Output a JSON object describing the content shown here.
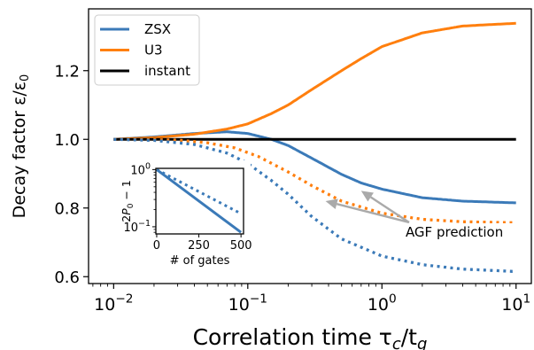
{
  "chart_data": [
    {
      "type": "line",
      "xlabel": "Correlation time τc/tg",
      "ylabel": "Decay factor ε/ε0",
      "x_scale": "log",
      "xlim": [
        0.0065,
        13
      ],
      "ylim": [
        0.58,
        1.38
      ],
      "x_ticks": [
        {
          "value": 0.01,
          "base": "10",
          "exp": "−2"
        },
        {
          "value": 0.1,
          "base": "10",
          "exp": "−1"
        },
        {
          "value": 1,
          "base": "10",
          "exp": "0"
        },
        {
          "value": 10,
          "base": "10",
          "exp": "1"
        }
      ],
      "y_ticks": [
        {
          "value": 0.6,
          "label": "0.6"
        },
        {
          "value": 0.8,
          "label": "0.8"
        },
        {
          "value": 1.0,
          "label": "1.0"
        },
        {
          "value": 1.2,
          "label": "1.2"
        }
      ],
      "legend_position": "upper-left",
      "series": [
        {
          "name": "ZSX",
          "color": "#3b7ab8",
          "style": "solid",
          "x": [
            0.01,
            0.02,
            0.04,
            0.07,
            0.1,
            0.15,
            0.2,
            0.3,
            0.5,
            0.7,
            1,
            2,
            4,
            10
          ],
          "y": [
            1.0,
            1.007,
            1.017,
            1.022,
            1.017,
            1.0,
            0.982,
            0.945,
            0.898,
            0.873,
            0.855,
            0.83,
            0.82,
            0.815
          ]
        },
        {
          "name": "U3",
          "color": "#ff7f0e",
          "style": "solid",
          "x": [
            0.01,
            0.02,
            0.04,
            0.07,
            0.1,
            0.15,
            0.2,
            0.3,
            0.5,
            0.7,
            1,
            2,
            4,
            10
          ],
          "y": [
            1.0,
            1.005,
            1.015,
            1.03,
            1.045,
            1.075,
            1.1,
            1.145,
            1.2,
            1.235,
            1.27,
            1.31,
            1.33,
            1.338
          ]
        },
        {
          "name": "instant",
          "color": "#000000",
          "style": "solid",
          "x": [
            0.01,
            10
          ],
          "y": [
            1.0,
            1.0
          ]
        },
        {
          "color": "#ff7f0e",
          "style": "dotted",
          "x": [
            0.01,
            0.03,
            0.05,
            0.08,
            0.12,
            0.2,
            0.3,
            0.5,
            1,
            2,
            4,
            10
          ],
          "y": [
            1.0,
            0.998,
            0.99,
            0.975,
            0.95,
            0.905,
            0.865,
            0.82,
            0.785,
            0.767,
            0.76,
            0.757
          ]
        },
        {
          "color": "#3b7ab8",
          "style": "dotted",
          "x": [
            0.01,
            0.02,
            0.04,
            0.07,
            0.1,
            0.15,
            0.2,
            0.3,
            0.5,
            1,
            2,
            4,
            10
          ],
          "y": [
            1.0,
            0.997,
            0.985,
            0.96,
            0.93,
            0.88,
            0.84,
            0.775,
            0.71,
            0.66,
            0.635,
            0.622,
            0.615
          ]
        }
      ],
      "annotations": [
        {
          "text": "AGF prediction",
          "color": "#000000",
          "arrow_color": "#aaaaaa",
          "text_at": [
            1.5,
            0.722
          ],
          "arrow_targets": [
            [
              0.38,
              0.82
            ],
            [
              0.7,
              0.85
            ]
          ]
        }
      ]
    },
    {
      "type": "line",
      "inset": true,
      "xlabel": "# of gates",
      "ylabel_parts": [
        "2",
        "P",
        "0",
        " − 1"
      ],
      "x_scale": "linear",
      "y_scale": "log",
      "xlim": [
        -5,
        515
      ],
      "ylim": [
        0.075,
        1.05
      ],
      "x_ticks": [
        {
          "value": 0,
          "label": "0"
        },
        {
          "value": 250,
          "label": "250"
        },
        {
          "value": 500,
          "label": "500"
        }
      ],
      "y_ticks": [
        {
          "value": 1,
          "base": "10",
          "exp": "0"
        },
        {
          "value": 0.1,
          "base": "10",
          "exp": "−1"
        }
      ],
      "series": [
        {
          "color": "#3b7ab8",
          "style": "solid",
          "x": [
            0,
            500
          ],
          "y": [
            1.0,
            0.08
          ]
        },
        {
          "color": "#3b7ab8",
          "style": "dotted",
          "x": [
            0,
            500
          ],
          "y": [
            1.0,
            0.17
          ]
        }
      ]
    }
  ]
}
